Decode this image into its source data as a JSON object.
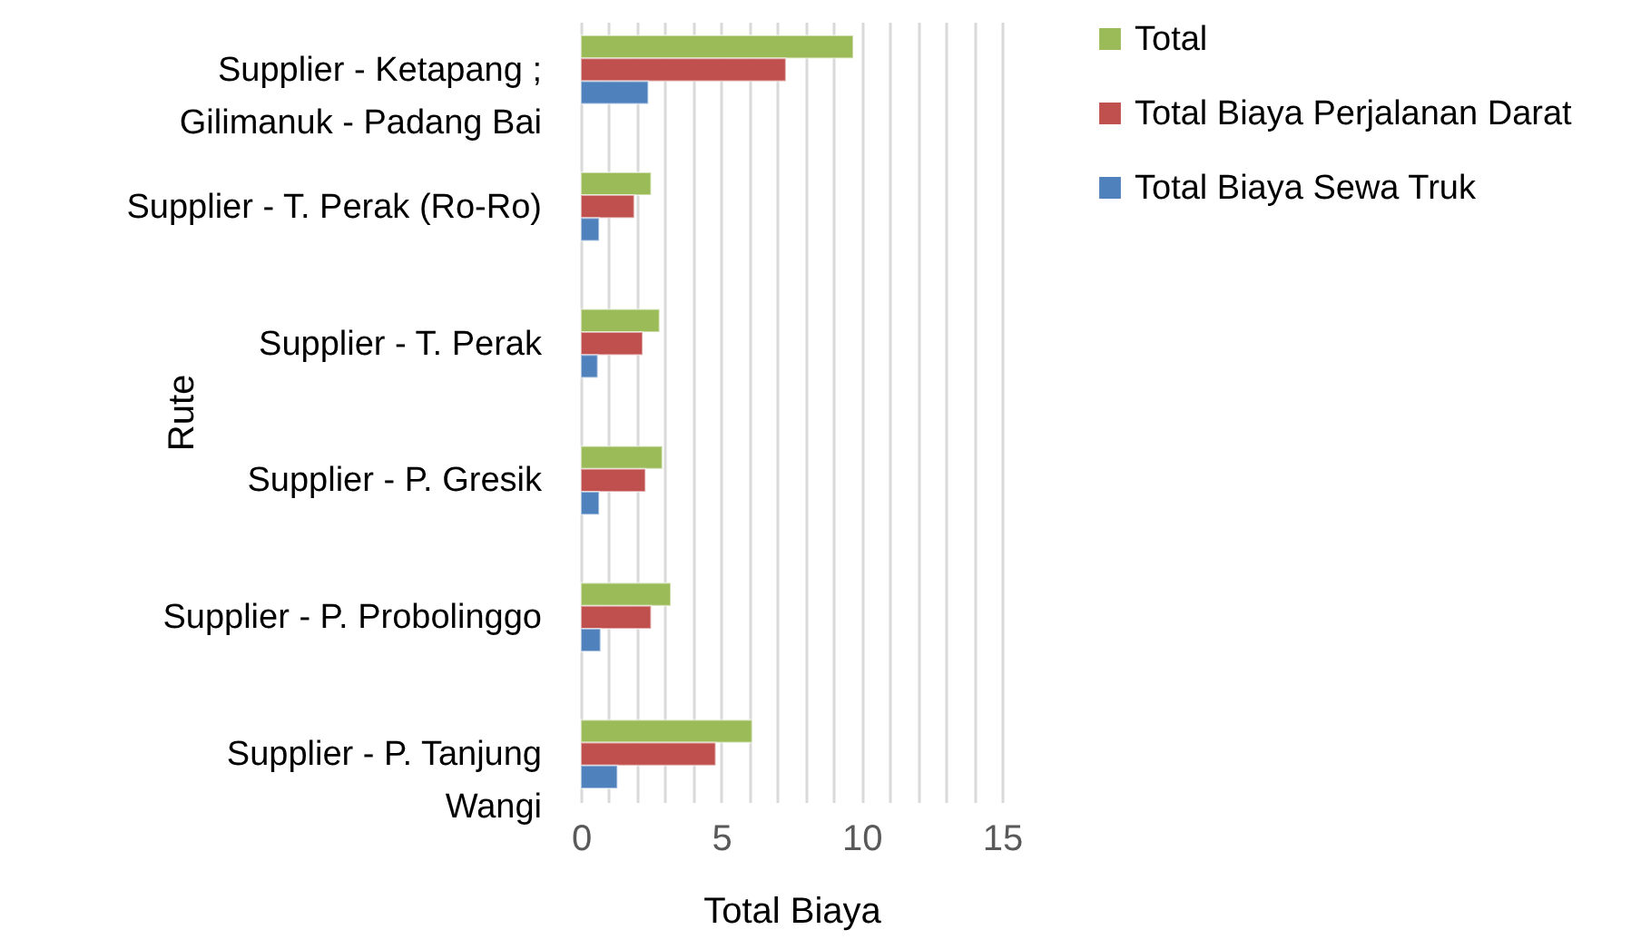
{
  "chart_data": {
    "type": "bar",
    "orientation": "horizontal",
    "xlabel": "Total Biaya",
    "ylabel": "Rute",
    "categories": [
      "Supplier - Ketapang ;\nGilimanuk - Padang Bai",
      "Supplier - T. Perak (Ro-Ro)",
      "Supplier - T. Perak",
      "Supplier - P. Gresik",
      "Supplier - P. Probolinggo",
      "Supplier - P. Tanjung\nWangi"
    ],
    "series": [
      {
        "name": "Total",
        "color": "#9bbb59",
        "values": [
          9.7,
          2.5,
          2.8,
          2.9,
          3.2,
          6.1
        ]
      },
      {
        "name": "Total Biaya Perjalanan Darat",
        "color": "#c0504d",
        "values": [
          7.3,
          1.9,
          2.2,
          2.3,
          2.5,
          4.8
        ]
      },
      {
        "name": "Total Biaya Sewa Truk",
        "color": "#4f81bd",
        "values": [
          2.4,
          0.65,
          0.6,
          0.65,
          0.7,
          1.3
        ]
      }
    ],
    "xlim": [
      0,
      15
    ],
    "xticks": [
      0,
      {
        "value": 1,
        "label": null
      },
      {
        "value": 2,
        "label": null
      },
      {
        "value": 3,
        "label": null
      },
      {
        "value": 4,
        "label": null
      },
      5,
      {
        "value": 6,
        "label": null
      },
      {
        "value": 7,
        "label": null
      },
      {
        "value": 8,
        "label": null
      },
      {
        "value": 9,
        "label": null
      },
      10,
      {
        "value": 11,
        "label": null
      },
      {
        "value": 12,
        "label": null
      },
      {
        "value": 13,
        "label": null
      },
      {
        "value": 14,
        "label": null
      },
      15
    ],
    "grid": true,
    "legend": "right"
  }
}
